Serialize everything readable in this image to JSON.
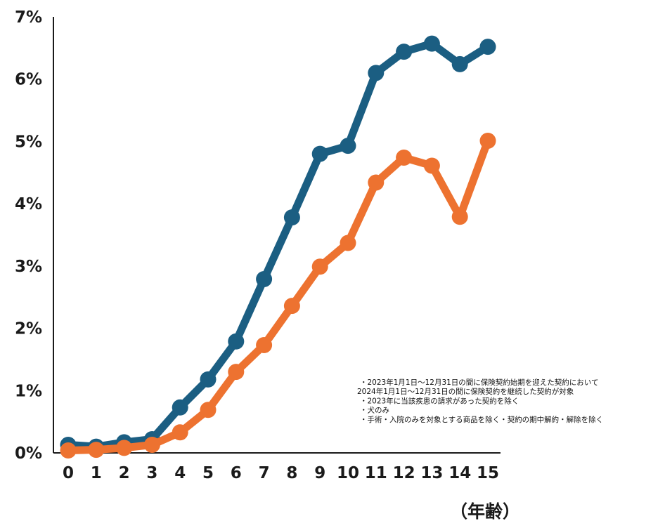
{
  "chart_data": {
    "type": "line",
    "x": [
      "0",
      "1",
      "2",
      "3",
      "4",
      "5",
      "6",
      "7",
      "8",
      "9",
      "10",
      "11",
      "12",
      "13",
      "14",
      "15"
    ],
    "series": [
      {
        "color": "#1b5e82",
        "values": [
          0.13,
          0.1,
          0.17,
          0.22,
          0.73,
          1.18,
          1.79,
          2.79,
          3.78,
          4.8,
          4.93,
          6.1,
          6.44,
          6.57,
          6.24,
          6.52
        ]
      },
      {
        "color": "#ed7230",
        "values": [
          0.04,
          0.05,
          0.08,
          0.13,
          0.33,
          0.69,
          1.3,
          1.73,
          2.36,
          2.99,
          3.37,
          4.34,
          4.74,
          4.61,
          3.79,
          5.01
        ]
      }
    ],
    "ylim": [
      0,
      7
    ],
    "yticks": [
      "0%",
      "1%",
      "2%",
      "3%",
      "4%",
      "5%",
      "6%",
      "7%"
    ],
    "xlabel": "（年齢）",
    "grid": false
  },
  "notes": [
    "・2023年1月1日〜12月31日の間に保険契約始期を迎えた契約において",
    "2024年1月1日〜12月31日の間に保険契約を継続した契約が対象",
    "・2023年に当該疾患の請求があった契約を除く",
    "・犬のみ",
    "・手術・入院のみを対象とする商品を除く・契約の期中解約・解除を除く"
  ]
}
